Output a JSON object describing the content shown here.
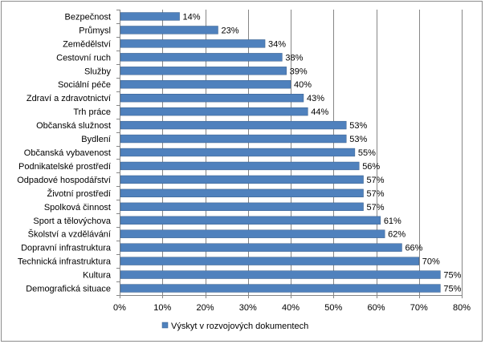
{
  "chart_data": {
    "type": "bar",
    "orientation": "horizontal",
    "categories": [
      "Bezpečnost",
      "Průmysl",
      "Zemědělství",
      "Cestovní ruch",
      "Služby",
      "Sociální péče",
      "Zdraví a zdravotnictví",
      "Trh práce",
      "Občanská služnost",
      "Bydlení",
      "Občanská vybavenost",
      "Podnikatelské prostředí",
      "Odpadové hospodářství",
      "Životní prostředí",
      "Spolková činnost",
      "Sport a tělovýchova",
      "Školství a vzdělávání",
      "Dopravní infrastruktura",
      "Technická infrastruktura",
      "Kultura",
      "Demografická situace"
    ],
    "series": [
      {
        "name": "Výskyt v rozvojových dokumentech",
        "values": [
          14,
          23,
          34,
          38,
          39,
          40,
          43,
          44,
          53,
          53,
          55,
          56,
          57,
          57,
          57,
          61,
          62,
          66,
          70,
          75,
          75
        ],
        "labels": [
          "14%",
          "23%",
          "34%",
          "38%",
          "39%",
          "40%",
          "43%",
          "44%",
          "53%",
          "53%",
          "55%",
          "56%",
          "57%",
          "57%",
          "57%",
          "61%",
          "62%",
          "66%",
          "70%",
          "75%",
          "75%"
        ]
      }
    ],
    "xlim": [
      0,
      80
    ],
    "xticks": [
      0,
      10,
      20,
      30,
      40,
      50,
      60,
      70,
      80
    ],
    "xtick_labels": [
      "0%",
      "10%",
      "20%",
      "30%",
      "40%",
      "50%",
      "60%",
      "70%",
      "80%"
    ],
    "grid": true,
    "legend": "bottom",
    "colors": {
      "bar": "#4f81bd",
      "bar_edge": "#385d8a",
      "grid": "#868686",
      "frame": "#8c8c8c"
    }
  }
}
